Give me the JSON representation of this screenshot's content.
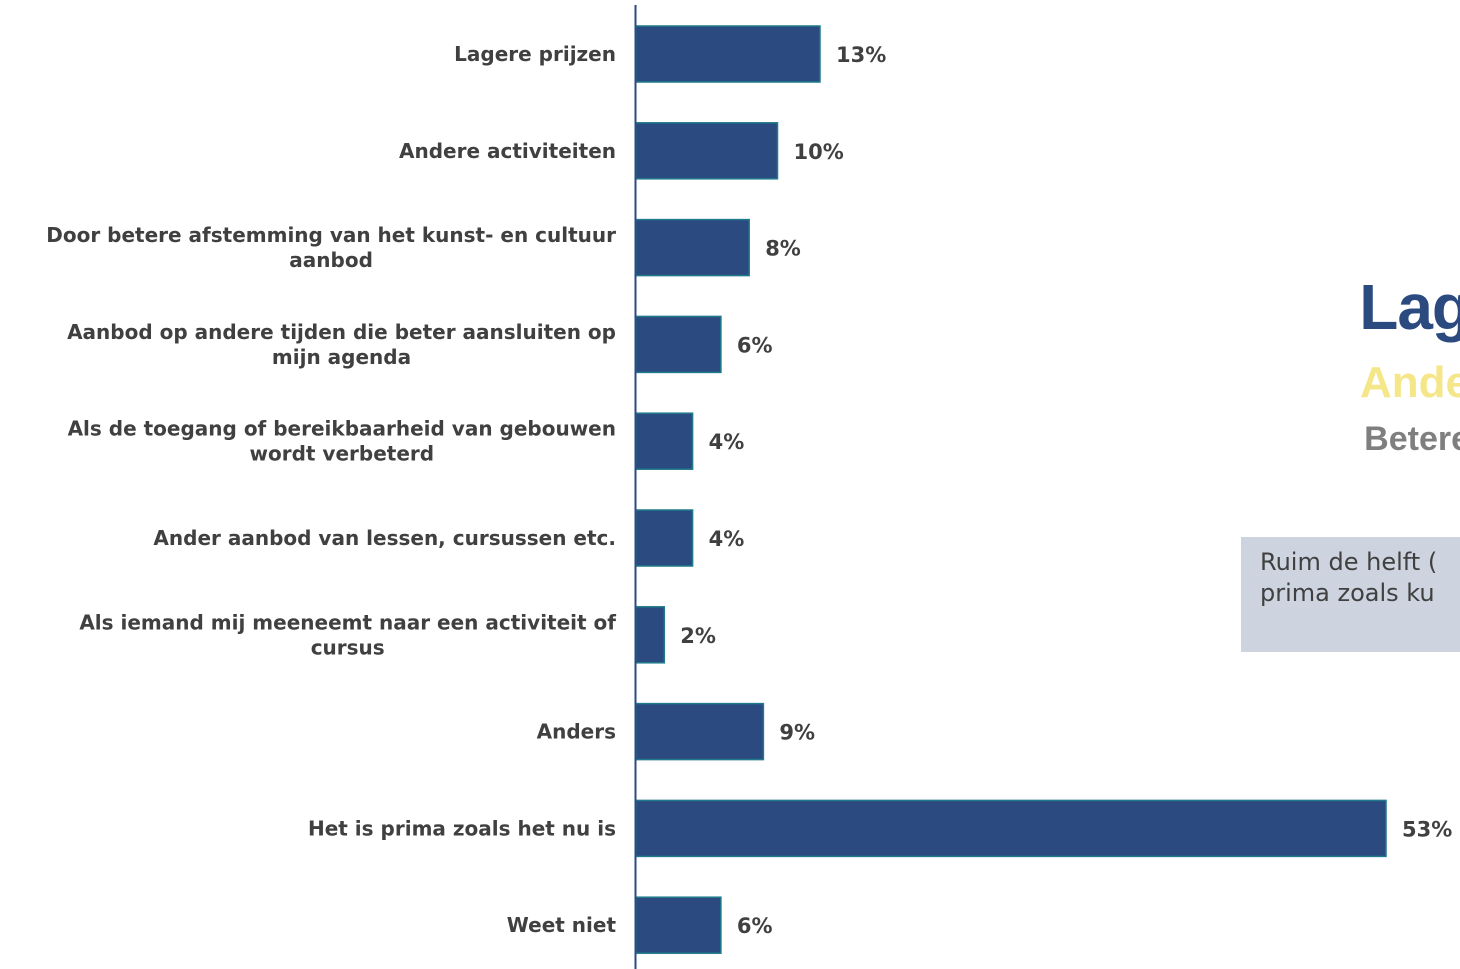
{
  "chart_data": {
    "type": "bar",
    "orientation": "horizontal",
    "categories": [
      "Lagere prijzen",
      "Andere activiteiten",
      "Door betere afstemming van het kunst- en cultuur aanbod",
      "Aanbod op andere tijden die beter aansluiten op mijn agenda",
      "Als de toegang of bereikbaarheid van gebouwen wordt verbeterd",
      "Ander aanbod van lessen, cursussen etc.",
      "Als iemand mij meeneemt naar een activiteit of cursus",
      "Anders",
      "Het is prima zoals het nu is",
      "Weet niet"
    ],
    "category_lines": [
      [
        "Lagere prijzen"
      ],
      [
        "Andere activiteiten"
      ],
      [
        "Door betere afstemming van het kunst- en cultuur",
        "aanbod"
      ],
      [
        "Aanbod op andere tijden die beter aansluiten op",
        "mijn agenda"
      ],
      [
        "Als de toegang of bereikbaarheid van gebouwen",
        "wordt verbeterd"
      ],
      [
        "Ander aanbod van lessen, cursussen etc."
      ],
      [
        "Als iemand mij meeneemt naar een activiteit of",
        "cursus"
      ],
      [
        "Anders"
      ],
      [
        "Het is prima zoals het nu is"
      ],
      [
        "Weet niet"
      ]
    ],
    "values": [
      13,
      10,
      8,
      6,
      4,
      4,
      2,
      9,
      53,
      6
    ],
    "value_labels": [
      "13%",
      "10%",
      "8%",
      "6%",
      "4%",
      "4%",
      "2%",
      "9%",
      "53%",
      "6%"
    ],
    "unit": "%",
    "xlim": [
      0,
      53
    ],
    "grid": false,
    "legend": "none",
    "bar_color": "#2b4a80",
    "bar_edge_color": "#1f7a8c"
  },
  "ranking": {
    "first": "Lag",
    "second": "Ande",
    "third": "Betere"
  },
  "callout": {
    "line1": "Ruim de helft (",
    "line2": "prima zoals ku"
  },
  "colors": {
    "accent_blue": "#2b4a80",
    "accent_yellow": "#f6e68a",
    "accent_grey": "#7f7f7f",
    "callout_bg": "#cdd4e0",
    "text": "#404040"
  }
}
